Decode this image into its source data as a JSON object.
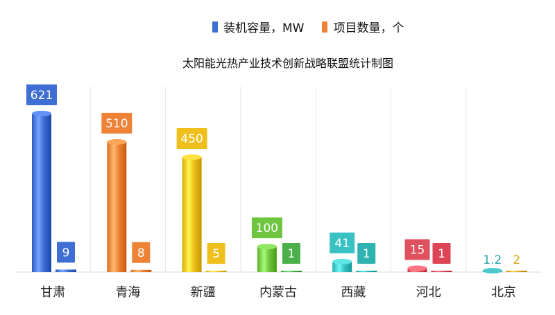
{
  "legend": {
    "capacity_label": "装机容量，MW",
    "count_label": "项目数量，个"
  },
  "colors": {
    "capacity_region": [
      "#3f6fd4",
      "#ee8237",
      "#eebf1d",
      "#6fc53f",
      "#39c2c1",
      "#e0515f",
      "#2aa6a6"
    ],
    "count_region": [
      "#3f6fd4",
      "#ee8237",
      "#eebf1d",
      "#4cb04a",
      "#2fb3b1",
      "#dd4455",
      "#d9a31a"
    ],
    "grid": "#e6e6e6"
  },
  "chart_data": {
    "type": "bar",
    "title": "太阳能光热产业技术创新战略联盟统计制图",
    "categories": [
      "甘肃",
      "青海",
      "新疆",
      "内蒙古",
      "西藏",
      "河北",
      "北京"
    ],
    "series": [
      {
        "name": "装机容量，MW",
        "values": [
          621,
          510,
          450,
          100,
          41,
          15,
          1.2
        ]
      },
      {
        "name": "项目数量，个",
        "values": [
          9,
          8,
          5,
          1,
          1,
          1,
          2
        ]
      }
    ],
    "value_labels": {
      "capacity": [
        "621",
        "510",
        "450",
        "100",
        "41",
        "15",
        "1.2"
      ],
      "count": [
        "9",
        "8",
        "5",
        "1",
        "1",
        "1",
        "2"
      ]
    },
    "ylim": [
      0,
      621
    ],
    "grid": "vertical separators",
    "legend_position": "top-center"
  }
}
